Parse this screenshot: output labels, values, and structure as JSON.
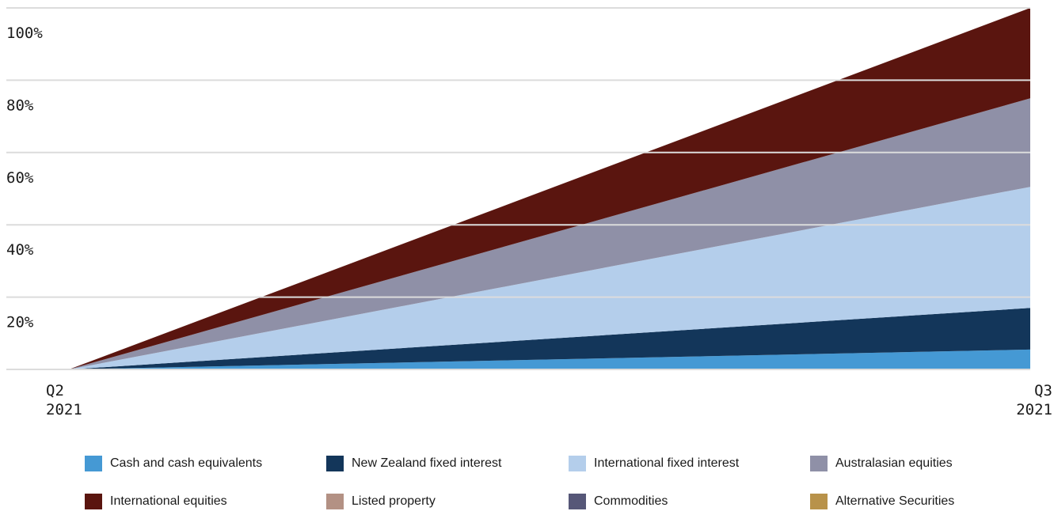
{
  "chart_data": {
    "type": "area",
    "stacked": true,
    "categories": [
      "Q2\n2021",
      "Q3\n2021"
    ],
    "yticks": [
      "20%",
      "40%",
      "60%",
      "80%",
      "100%"
    ],
    "ylim": [
      0,
      100
    ],
    "grid": true,
    "legend_position": "bottom",
    "series": [
      {
        "name": "Cash and cash equivalents",
        "color": "#4599d4",
        "values": [
          0,
          5.5
        ]
      },
      {
        "name": "New Zealand fixed interest",
        "color": "#13365a",
        "values": [
          0,
          11.5
        ]
      },
      {
        "name": "International fixed interest",
        "color": "#b4ceeb",
        "values": [
          0,
          33.5
        ]
      },
      {
        "name": "Australasian equities",
        "color": "#8f90a7",
        "values": [
          0,
          24.5
        ]
      },
      {
        "name": "International equities",
        "color": "#5a150f",
        "values": [
          0,
          25
        ]
      },
      {
        "name": "Listed property",
        "color": "#b39184",
        "values": [
          0,
          0
        ]
      },
      {
        "name": "Commodities",
        "color": "#565778",
        "values": [
          0,
          0
        ]
      },
      {
        "name": "Alternative Securities",
        "color": "#b8924a",
        "values": [
          0,
          0
        ]
      }
    ]
  }
}
